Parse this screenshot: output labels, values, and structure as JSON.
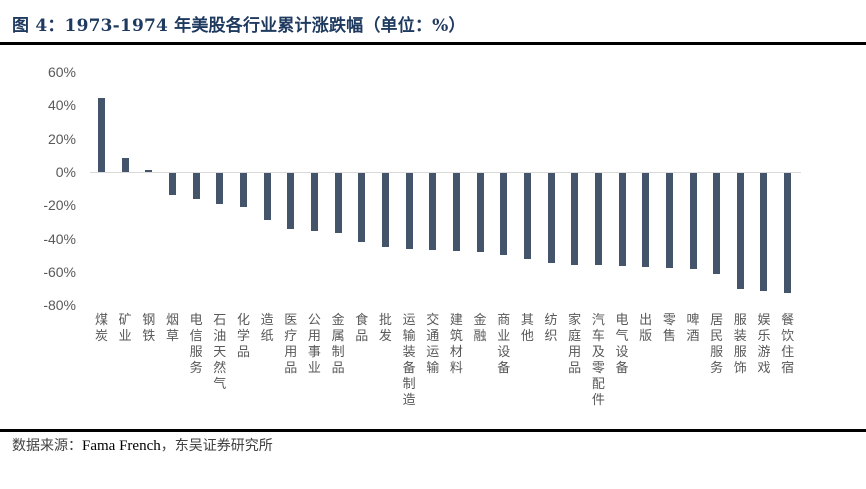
{
  "header": {
    "title": "图 4：1973-1974 年美股各行业累计涨跌幅（单位：%）"
  },
  "footer": {
    "source_label": "数据来源：",
    "source_en": "Fama French",
    "source_rest": "，东吴证券研究所"
  },
  "chart_data": {
    "type": "bar",
    "title": "1973-1974 年美股各行业累计涨跌幅（单位：%）",
    "xlabel": "",
    "ylabel": "",
    "ylim": [
      -80,
      60
    ],
    "yticks": [
      "60%",
      "40%",
      "20%",
      "0%",
      "-20%",
      "-40%",
      "-60%",
      "-80%"
    ],
    "ytick_values": [
      60,
      40,
      20,
      0,
      -20,
      -40,
      -60,
      -80
    ],
    "grid": false,
    "legend": null,
    "bar_color": "#44546a",
    "categories": [
      "煤炭",
      "矿业",
      "钢铁",
      "烟草",
      "电信服务",
      "石油天然气",
      "化学品",
      "造纸",
      "医疗用品",
      "公用事业",
      "金属制品",
      "食品",
      "批发",
      "运输装备制造",
      "交通运输",
      "建筑材料",
      "金融",
      "商业设备",
      "其他",
      "纺织",
      "家庭用品",
      "汽车及零配件",
      "电气设备",
      "出版",
      "零售",
      "啤酒",
      "居民服务",
      "服装服饰",
      "娱乐游戏",
      "餐饮住宿"
    ],
    "values": [
      44.5,
      8.4,
      1.0,
      -13.2,
      -15.6,
      -18.6,
      -20.4,
      -28.2,
      -33.6,
      -34.8,
      -36.0,
      -41.4,
      -44.4,
      -45.6,
      -46.2,
      -46.8,
      -47.4,
      -49.2,
      -51.6,
      -54.0,
      -55.2,
      -55.4,
      -55.8,
      -56.4,
      -57.0,
      -57.6,
      -60.6,
      -69.6,
      -71.0,
      -72.0
    ]
  }
}
